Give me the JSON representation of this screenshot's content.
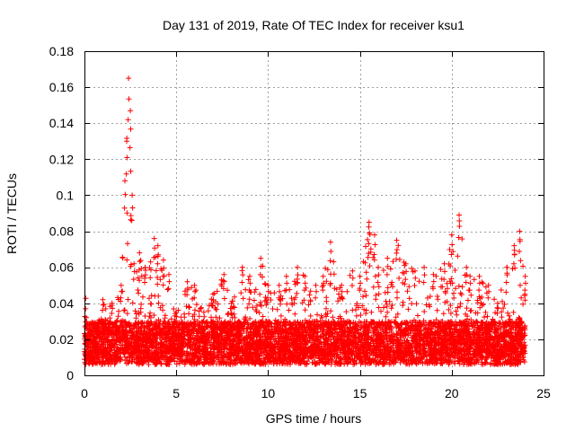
{
  "chart_data": {
    "type": "scatter",
    "title": "Day 131 of 2019, Rate Of TEC Index for receiver ksu1",
    "xlabel": "GPS time / hours",
    "ylabel": "ROTI / TECUs",
    "xlim": [
      0,
      25
    ],
    "ylim": [
      0,
      0.18
    ],
    "xticks": [
      "0",
      "5",
      "10",
      "15",
      "20",
      "25"
    ],
    "yticks": [
      "0",
      "0.02",
      "0.04",
      "0.06",
      "0.08",
      "0.1",
      "0.12",
      "0.14",
      "0.16",
      "0.18"
    ],
    "grid": true,
    "marker": "+",
    "color": "#ff0000",
    "series": [
      {
        "name": "",
        "peaks": [
          [
            0.1,
            0.032
          ],
          [
            0.6,
            0.028
          ],
          [
            1.0,
            0.042
          ],
          [
            1.5,
            0.04
          ],
          [
            2.0,
            0.05
          ],
          [
            2.2,
            0.108
          ],
          [
            2.3,
            0.13
          ],
          [
            2.4,
            0.165
          ],
          [
            2.5,
            0.147
          ],
          [
            2.6,
            0.1
          ],
          [
            2.7,
            0.062
          ],
          [
            3.0,
            0.068
          ],
          [
            3.3,
            0.06
          ],
          [
            3.6,
            0.063
          ],
          [
            3.8,
            0.076
          ],
          [
            4.0,
            0.072
          ],
          [
            4.3,
            0.064
          ],
          [
            4.6,
            0.056
          ],
          [
            5.0,
            0.035
          ],
          [
            5.6,
            0.052
          ],
          [
            6.0,
            0.05
          ],
          [
            6.5,
            0.035
          ],
          [
            7.0,
            0.045
          ],
          [
            7.6,
            0.056
          ],
          [
            8.0,
            0.04
          ],
          [
            8.6,
            0.06
          ],
          [
            9.0,
            0.055
          ],
          [
            9.6,
            0.065
          ],
          [
            10.0,
            0.05
          ],
          [
            10.6,
            0.05
          ],
          [
            11.0,
            0.055
          ],
          [
            11.6,
            0.06
          ],
          [
            12.0,
            0.055
          ],
          [
            12.6,
            0.05
          ],
          [
            13.0,
            0.055
          ],
          [
            13.4,
            0.074
          ],
          [
            14.0,
            0.05
          ],
          [
            14.6,
            0.058
          ],
          [
            15.0,
            0.055
          ],
          [
            15.5,
            0.085
          ],
          [
            15.8,
            0.078
          ],
          [
            16.0,
            0.06
          ],
          [
            16.5,
            0.065
          ],
          [
            17.0,
            0.075
          ],
          [
            17.5,
            0.062
          ],
          [
            18.0,
            0.058
          ],
          [
            18.5,
            0.06
          ],
          [
            19.0,
            0.056
          ],
          [
            19.6,
            0.062
          ],
          [
            20.0,
            0.078
          ],
          [
            20.4,
            0.089
          ],
          [
            20.8,
            0.06
          ],
          [
            21.0,
            0.055
          ],
          [
            21.5,
            0.055
          ],
          [
            22.0,
            0.05
          ],
          [
            22.5,
            0.04
          ],
          [
            23.0,
            0.06
          ],
          [
            23.4,
            0.072
          ],
          [
            23.7,
            0.08
          ],
          [
            24.0,
            0.055
          ]
        ]
      }
    ]
  }
}
